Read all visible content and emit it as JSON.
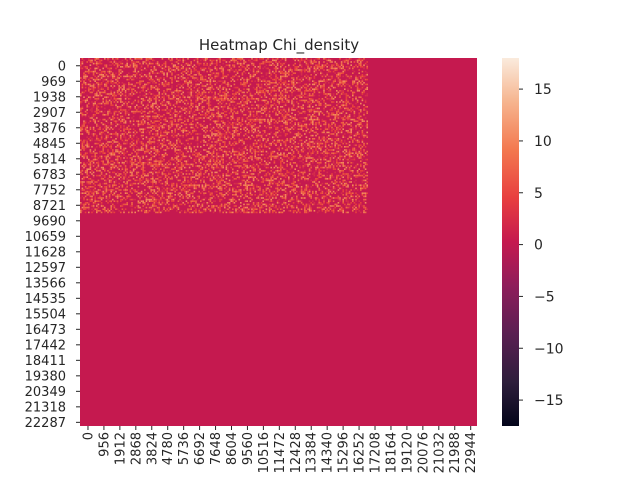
{
  "chart_data": {
    "type": "heatmap",
    "title": "Heatmap Chi_density",
    "xlabel": "",
    "ylabel": "",
    "y_tick_labels": [
      "0",
      "969",
      "1938",
      "2907",
      "3876",
      "4845",
      "5814",
      "6783",
      "7752",
      "8721",
      "9690",
      "10659",
      "11628",
      "12597",
      "13566",
      "14535",
      "15504",
      "16473",
      "17442",
      "18411",
      "19380",
      "20349",
      "21318",
      "22287"
    ],
    "x_tick_labels": [
      "0",
      "956",
      "1912",
      "2868",
      "3824",
      "4780",
      "5736",
      "6692",
      "7648",
      "8604",
      "9560",
      "10516",
      "11472",
      "12428",
      "13384",
      "14340",
      "15296",
      "16252",
      "17208",
      "18164",
      "19120",
      "20076",
      "21032",
      "21988",
      "22944"
    ],
    "row_step": 969,
    "col_step": 956,
    "n_rows_approx": 23000,
    "n_cols_approx": 23800,
    "baseline_value": 0,
    "active_region": {
      "rows": [
        0,
        9600
      ],
      "cols": [
        0,
        17200
      ]
    },
    "active_values_approx": [
      0,
      4,
      8,
      12,
      18
    ],
    "colorbar": {
      "min": -17.5,
      "max": 18,
      "ticks": [
        15,
        10,
        5,
        0,
        -5,
        -10,
        -15
      ],
      "tick_labels": [
        "15",
        "10",
        "5",
        "0",
        "−5",
        "−10",
        "−15"
      ],
      "colormap": "rocket"
    }
  }
}
